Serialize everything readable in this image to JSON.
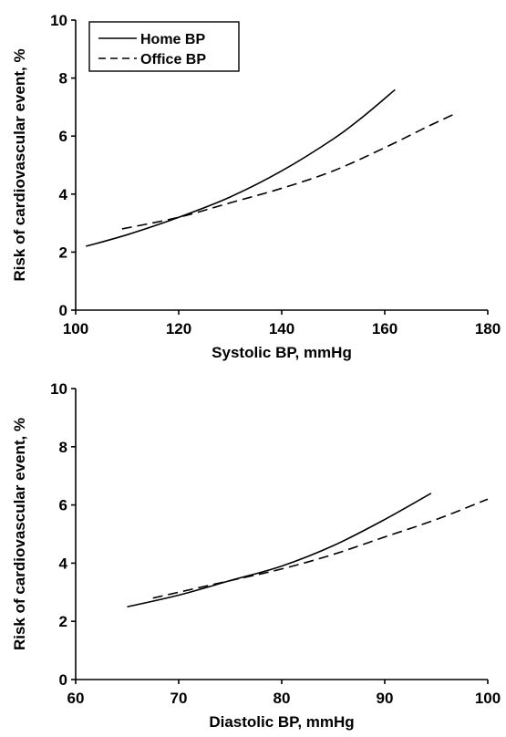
{
  "chart_data": [
    {
      "type": "line",
      "xlabel": "Systolic BP, mmHg",
      "ylabel": "Risk of cardiovascular event, %",
      "xlim": [
        100,
        180
      ],
      "ylim": [
        0,
        10
      ],
      "xticks": [
        "100",
        "120",
        "140",
        "160",
        "180"
      ],
      "yticks": [
        "0",
        "2",
        "4",
        "6",
        "8",
        "10"
      ],
      "grid": false,
      "legend": "top-left",
      "series": [
        {
          "name": "Home BP",
          "style": "solid",
          "x": [
            102,
            110,
            120,
            130,
            140,
            150,
            156,
            162
          ],
          "y": [
            2.2,
            2.6,
            3.2,
            3.9,
            4.8,
            5.9,
            6.7,
            7.6
          ]
        },
        {
          "name": "Office BP",
          "style": "dashed",
          "x": [
            109,
            120,
            130,
            140,
            150,
            160,
            168,
            174
          ],
          "y": [
            2.8,
            3.2,
            3.7,
            4.2,
            4.8,
            5.6,
            6.3,
            6.8
          ]
        }
      ]
    },
    {
      "type": "line",
      "xlabel": "Diastolic BP, mmHg",
      "ylabel": "Risk of cardiovascular event, %",
      "xlim": [
        60,
        100
      ],
      "ylim": [
        0,
        10
      ],
      "xticks": [
        "60",
        "70",
        "80",
        "90",
        "100"
      ],
      "yticks": [
        "0",
        "2",
        "4",
        "6",
        "8",
        "10"
      ],
      "grid": false,
      "legend": "none",
      "series": [
        {
          "name": "Home BP",
          "style": "solid",
          "x": [
            65,
            70,
            75,
            80,
            85,
            90,
            94.5
          ],
          "y": [
            2.5,
            2.9,
            3.4,
            3.9,
            4.6,
            5.5,
            6.4
          ]
        },
        {
          "name": "Office BP",
          "style": "dashed",
          "x": [
            67.5,
            70,
            75,
            80,
            85,
            90,
            95,
            100
          ],
          "y": [
            2.8,
            3.0,
            3.4,
            3.8,
            4.3,
            4.9,
            5.5,
            6.2
          ]
        }
      ]
    }
  ]
}
